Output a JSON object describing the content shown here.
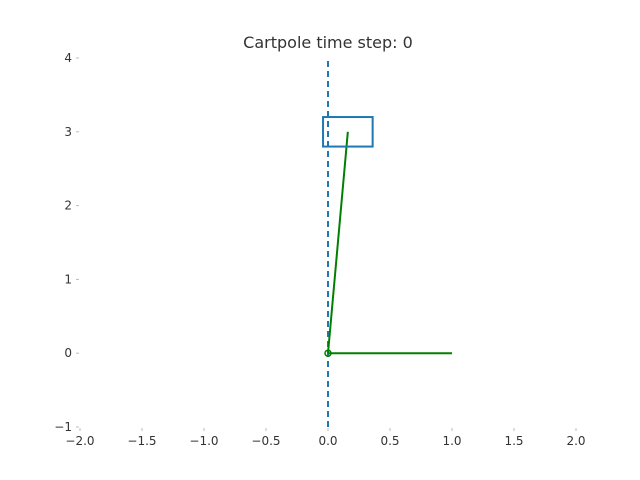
{
  "chart_data": {
    "type": "line",
    "title": "Cartpole time step: 0",
    "xlabel": "",
    "ylabel": "",
    "xlim": [
      -2.0,
      2.0
    ],
    "ylim": [
      -1,
      4
    ],
    "grid": false,
    "x_ticks": [
      "−2.0",
      "−1.5",
      "−1.0",
      "−0.5",
      "0.0",
      "0.5",
      "1.0",
      "1.5",
      "2.0"
    ],
    "x_tick_values": [
      -2.0,
      -1.5,
      -1.0,
      -0.5,
      0.0,
      0.5,
      1.0,
      1.5,
      2.0
    ],
    "y_ticks": [
      "−1",
      "0",
      "1",
      "2",
      "3",
      "4"
    ],
    "y_tick_values": [
      -1,
      0,
      1,
      2,
      3,
      4
    ],
    "series": [
      {
        "color": "#1f77b4",
        "style": "dashed",
        "x": [
          0.0,
          0.0
        ],
        "y": [
          -1,
          4
        ]
      },
      {
        "color": "#008000",
        "style": "solid",
        "x": [
          0.0,
          0.16
        ],
        "y": [
          0.0,
          3.0
        ]
      },
      {
        "color": "#008000",
        "style": "solid",
        "x": [
          0.0,
          1.0
        ],
        "y": [
          0.0,
          0.0
        ]
      }
    ],
    "shapes": [
      {
        "type": "rectangle",
        "color": "#1f77b4",
        "x0": -0.04,
        "x1": 0.36,
        "y0": 2.8,
        "y1": 3.2
      }
    ],
    "points": [
      {
        "x": 0.0,
        "y": 0.0,
        "color": "#008000"
      }
    ]
  }
}
